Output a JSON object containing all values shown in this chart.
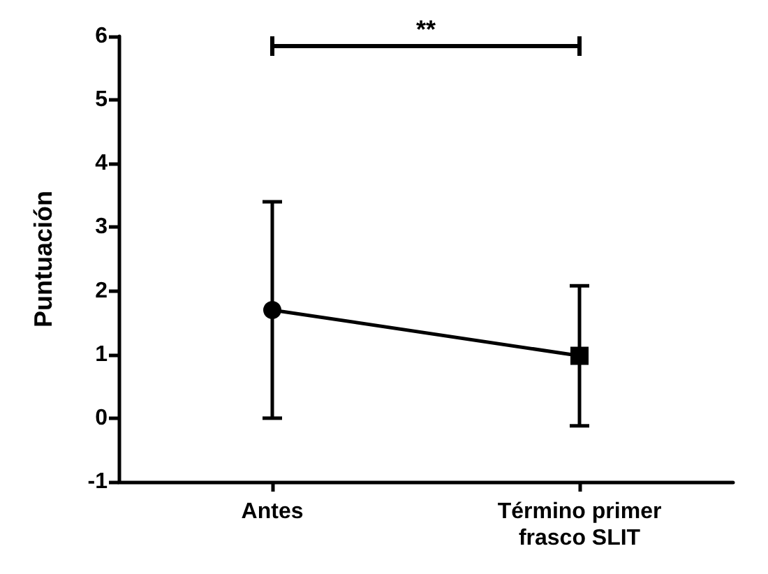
{
  "chart_data": {
    "type": "line",
    "ylabel": "Puntuación",
    "categories": [
      "Antes",
      "Término primer\nfrasco SLIT"
    ],
    "series": [
      {
        "color": "#000000",
        "values": [
          1.7,
          0.98
        ],
        "errors": [
          1.7,
          1.1
        ],
        "marker": [
          "circle",
          "square"
        ]
      }
    ],
    "ylim": [
      -1,
      6
    ],
    "yticks": [
      -1,
      0,
      1,
      2,
      3,
      4,
      5,
      6
    ],
    "grid": false,
    "annotations": [
      "**"
    ]
  }
}
